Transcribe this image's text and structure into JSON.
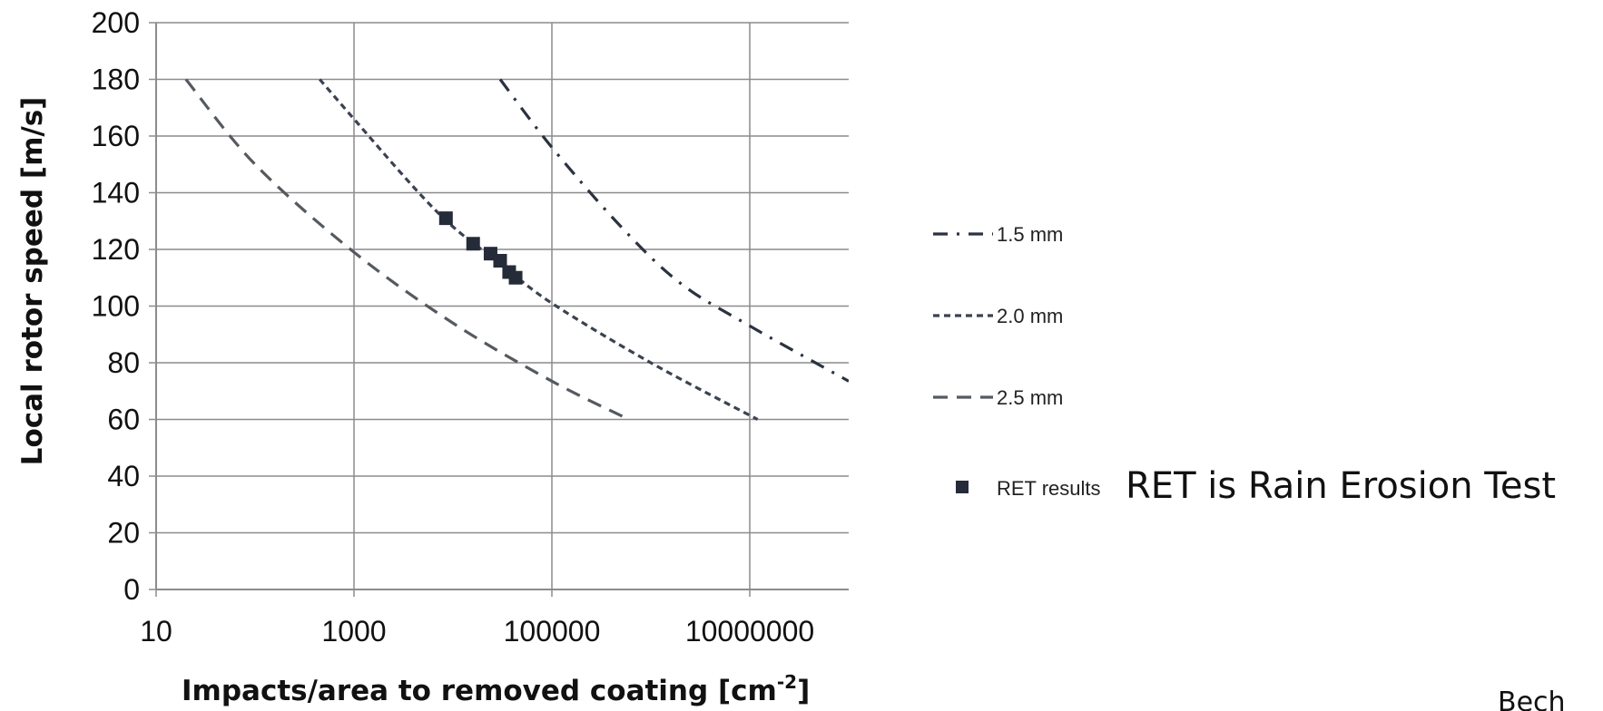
{
  "chart_data": {
    "type": "line",
    "xlabel": "Impacts/area to removed coating [cm",
    "xlabel_sup": "-2",
    "xlabel_end": "]",
    "ylabel": "Local rotor speed [m/s]",
    "x_scale": "log",
    "xlim": [
      10,
      100000000
    ],
    "ylim": [
      0,
      200
    ],
    "x_ticks": [
      10,
      1000,
      100000,
      10000000
    ],
    "x_tick_labels": [
      "10",
      "1000",
      "100000",
      "10000000"
    ],
    "y_ticks": [
      0,
      20,
      40,
      60,
      80,
      100,
      120,
      140,
      160,
      180,
      200
    ],
    "grid": true,
    "legend_position": "right",
    "series": [
      {
        "name": "1.5 mm",
        "style": "dash-dot",
        "color": "#2b3240",
        "points": [
          [
            30000,
            180
          ],
          [
            100000,
            156
          ],
          [
            500000,
            128
          ],
          [
            2000000,
            108
          ],
          [
            10000000,
            93
          ],
          [
            100000000,
            73.5
          ]
        ]
      },
      {
        "name": "2.0 mm",
        "style": "dotted",
        "color": "#3b4252",
        "points": [
          [
            450,
            180
          ],
          [
            1000,
            166
          ],
          [
            4000,
            142
          ],
          [
            10000,
            128
          ],
          [
            30000,
            115
          ],
          [
            100000,
            101
          ],
          [
            1000000,
            80
          ],
          [
            12000000,
            60
          ]
        ]
      },
      {
        "name": "2.5 mm",
        "style": "dashed",
        "color": "#555a60",
        "points": [
          [
            20,
            180
          ],
          [
            100,
            150
          ],
          [
            1000,
            119
          ],
          [
            10000,
            94
          ],
          [
            100000,
            73.5
          ],
          [
            600000,
            60
          ]
        ]
      },
      {
        "name": "RET results",
        "style": "marker",
        "color": "#252b38",
        "points": [
          [
            8500,
            131
          ],
          [
            16000,
            122
          ],
          [
            24000,
            118.5
          ],
          [
            30000,
            116
          ],
          [
            37000,
            112
          ],
          [
            43000,
            110
          ]
        ]
      }
    ],
    "annotation": "RET is Rain Erosion Test",
    "corner_text": "Bech"
  }
}
